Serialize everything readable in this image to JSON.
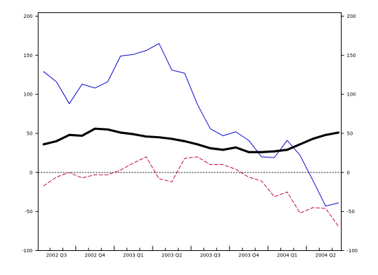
{
  "chart_data": {
    "type": "line",
    "title": "",
    "xlabel": "",
    "ylabel": "",
    "ylim": [
      -100,
      200
    ],
    "y_ticks": [
      200,
      150,
      100,
      50,
      0,
      -50,
      -100
    ],
    "y_tick_labels": [
      "200",
      "150",
      "100",
      "50",
      "0",
      "-50",
      "-100"
    ],
    "y_axes": "left and right (mirrored)",
    "x_tick_labels": [
      "2002 Q3",
      "2002 Q4",
      "2003 Q1",
      "2003 Q2",
      "2003 Q3",
      "2003 Q4",
      "2004 Q1",
      "2004 Q2"
    ],
    "x_points_per_quarter": 3,
    "x_first_month_index": 0,
    "grid": false,
    "zero_line": "dotted",
    "series": [
      {
        "key": "blue-thin",
        "color": "#0000cc",
        "style": "solid-thin",
        "values": [
          129,
          116,
          88,
          113,
          108,
          116,
          149,
          151,
          156,
          165,
          131,
          127,
          87,
          56,
          47,
          52,
          41,
          20,
          19,
          41,
          22,
          -10,
          -43,
          -39
        ]
      },
      {
        "key": "black-thick",
        "color": "#000000",
        "style": "solid-thick",
        "values": [
          36,
          40,
          48,
          47,
          56,
          55,
          51,
          49,
          46,
          45,
          43,
          40,
          36,
          31,
          29,
          32,
          26,
          26,
          27,
          29,
          36,
          43,
          48,
          51
        ]
      },
      {
        "key": "red-dashed",
        "color": "#c0004a",
        "style": "dashed",
        "values": [
          -17,
          -6,
          0,
          -7,
          -3,
          -3,
          3,
          12,
          20,
          -8,
          -12,
          18,
          20,
          10,
          10,
          4,
          -6,
          -11,
          -31,
          -25,
          -52,
          -45,
          -46,
          -69
        ]
      }
    ]
  }
}
